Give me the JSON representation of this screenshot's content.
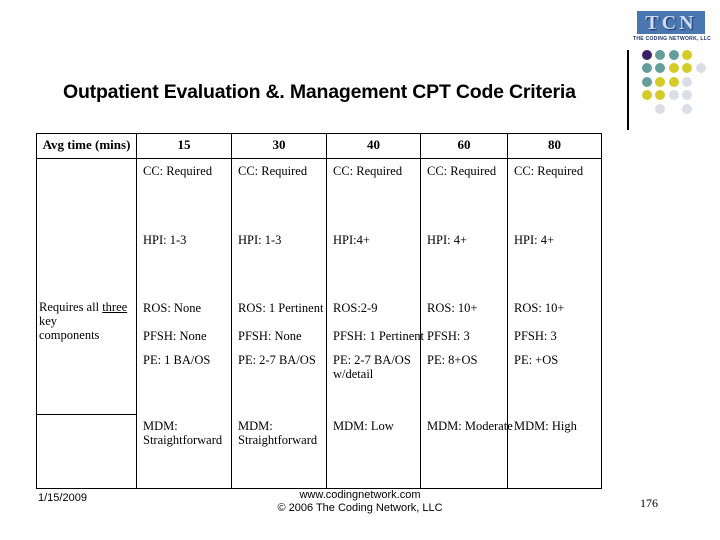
{
  "slide": {
    "title": "Outpatient Evaluation &. Management CPT Code Criteria",
    "footer": {
      "date": "1/15/2009",
      "site": "www.codingnetwork.com",
      "copyright": "© 2006 The Coding Network, LLC",
      "page_number": "176"
    }
  },
  "logo": {
    "acronym": "TCN",
    "name": "THE CODING NETWORK, LLC",
    "colors": {
      "box_blue": "#4a77b0",
      "letter_light": "#cfdcef",
      "letter_shadow": "#132f66",
      "name_navy": "#1c2f6e"
    },
    "dots": {
      "colors": {
        "purple": "#3b1f69",
        "teal": "#639e9a",
        "yellow": "#d4cb28",
        "gray": "#dbdee9"
      },
      "rows": [
        [
          "purple",
          "teal",
          "teal",
          "yellow",
          ""
        ],
        [
          "teal",
          "teal",
          "yellow",
          "yellow",
          "gray"
        ],
        [
          "teal",
          "yellow",
          "yellow",
          "gray",
          ""
        ],
        [
          "yellow",
          "yellow",
          "gray",
          "gray",
          ""
        ],
        [
          "",
          "gray",
          "",
          "gray",
          ""
        ]
      ]
    }
  },
  "table": {
    "corner_header": "Avg time (mins)",
    "row_label": {
      "prefix": "Requires all ",
      "underlined": "three",
      "line2": "key",
      "line3": "components"
    },
    "columns": [
      {
        "header": "15",
        "cc": "CC: Required",
        "hpi": "HPI: 1-3",
        "ros": "ROS: None",
        "pfsh": "PFSH: None",
        "pe": "PE: 1 BA/OS",
        "mdm": "MDM: Straightforward"
      },
      {
        "header": "30",
        "cc": "CC: Required",
        "hpi": "HPI: 1-3",
        "ros": "ROS: 1 Pertinent",
        "pfsh": "PFSH: None",
        "pe": "PE: 2-7 BA/OS",
        "mdm": "MDM: Straightforward"
      },
      {
        "header": "40",
        "cc": "CC: Required",
        "hpi": "HPI:4+",
        "ros": "ROS:2-9",
        "pfsh": "PFSH: 1 Pertinent",
        "pe": "PE: 2-7 BA/OS w/detail",
        "mdm": "MDM: Low"
      },
      {
        "header": "60",
        "cc": "CC: Required",
        "hpi": "HPI: 4+",
        "ros": "ROS: 10+",
        "pfsh": "PFSH: 3",
        "pe": "PE: 8+OS",
        "mdm": "MDM: Moderate"
      },
      {
        "header": "80",
        "cc": "CC: Required",
        "hpi": "HPI: 4+",
        "ros": "ROS: 10+",
        "pfsh": "PFSH: 3",
        "pe": "PE: +OS",
        "mdm": "MDM: High"
      }
    ]
  }
}
